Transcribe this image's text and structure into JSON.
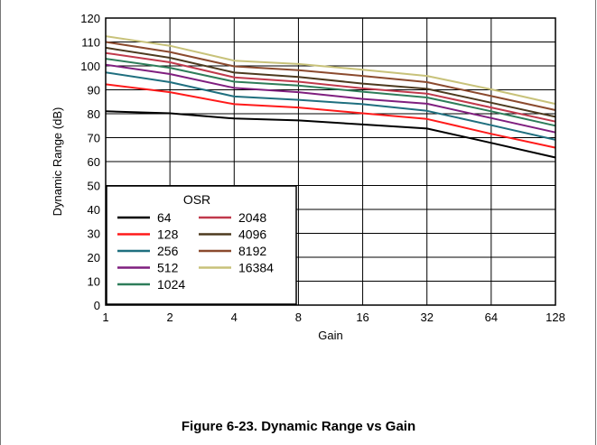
{
  "figure_caption": "Figure 6-23. Dynamic Range vs Gain",
  "chart_data": {
    "type": "line",
    "title": "",
    "xlabel": "Gain",
    "ylabel": "Dynamic Range (dB)",
    "x": [
      "1",
      "2",
      "4",
      "8",
      "16",
      "32",
      "64",
      "128"
    ],
    "ylim": [
      0,
      120
    ],
    "yticks": [
      0,
      10,
      20,
      30,
      40,
      50,
      60,
      70,
      80,
      90,
      100,
      110,
      120
    ],
    "grid": true,
    "legend": {
      "title": "OSR",
      "placement": "bottom-left"
    },
    "series": [
      {
        "name": "64",
        "color": "#000000",
        "values": [
          81,
          80.2,
          78,
          77.2,
          75.5,
          73.8,
          67.8,
          61.7
        ]
      },
      {
        "name": "128",
        "color": "#ff1a1a",
        "values": [
          92.3,
          89,
          84,
          82.6,
          80.2,
          77.8,
          71.6,
          65.8
        ]
      },
      {
        "name": "256",
        "color": "#1f6f7f",
        "values": [
          97.3,
          93.2,
          87.2,
          85.8,
          84,
          81.2,
          75.2,
          69.1
        ]
      },
      {
        "name": "512",
        "color": "#7f1f7f",
        "values": [
          100.5,
          96.6,
          90.8,
          89,
          86.2,
          84.2,
          78.2,
          72.2
        ]
      },
      {
        "name": "1024",
        "color": "#2e7d5a",
        "values": [
          103,
          99.2,
          93.4,
          91.8,
          89.2,
          86.8,
          81,
          75
        ]
      },
      {
        "name": "2048",
        "color": "#c0394b",
        "values": [
          105.4,
          101.5,
          95.2,
          93.4,
          90.6,
          88.4,
          82.6,
          76.7
        ]
      },
      {
        "name": "4096",
        "color": "#4d3a1f",
        "values": [
          107.6,
          103.4,
          97.2,
          95.4,
          92.6,
          90.4,
          84.6,
          78.7
        ]
      },
      {
        "name": "8192",
        "color": "#8b4a2e",
        "values": [
          110,
          105.8,
          99.8,
          98.2,
          95.8,
          93.2,
          87.4,
          81.5
        ]
      },
      {
        "name": "16384",
        "color": "#c8c27a",
        "values": [
          112.4,
          108.4,
          102.2,
          100.8,
          98.4,
          95.8,
          90.2,
          84.1
        ]
      }
    ]
  }
}
